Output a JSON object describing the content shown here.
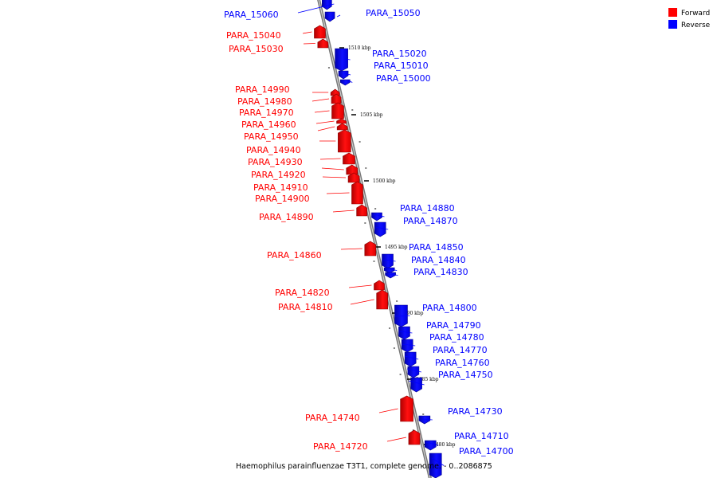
{
  "caption": "Haemophilus parainfluenzae T3T1, complete genome. - 0..2086875",
  "legend": [
    {
      "label": "Forward",
      "color": "#ff0000"
    },
    {
      "label": "Reverse",
      "color": "#0000ff"
    }
  ],
  "scale_labels": [
    "1510 kbp",
    "1505 kbp",
    "1500 kbp",
    "1495 kbp",
    "1490 kbp",
    "1485 kbp",
    "1480 kbp"
  ],
  "genes": [
    {
      "label": "PARA_15060",
      "strand": "reverse"
    },
    {
      "label": "PARA_15050",
      "strand": "reverse"
    },
    {
      "label": "PARA_15040",
      "strand": "forward"
    },
    {
      "label": "PARA_15030",
      "strand": "forward"
    },
    {
      "label": "PARA_15020",
      "strand": "reverse"
    },
    {
      "label": "PARA_15010",
      "strand": "reverse"
    },
    {
      "label": "PARA_15000",
      "strand": "reverse"
    },
    {
      "label": "PARA_14990",
      "strand": "forward"
    },
    {
      "label": "PARA_14980",
      "strand": "forward"
    },
    {
      "label": "PARA_14970",
      "strand": "forward"
    },
    {
      "label": "PARA_14960",
      "strand": "forward"
    },
    {
      "label": "PARA_14950",
      "strand": "forward"
    },
    {
      "label": "PARA_14940",
      "strand": "forward"
    },
    {
      "label": "PARA_14930",
      "strand": "forward"
    },
    {
      "label": "PARA_14920",
      "strand": "forward"
    },
    {
      "label": "PARA_14910",
      "strand": "forward"
    },
    {
      "label": "PARA_14900",
      "strand": "forward"
    },
    {
      "label": "PARA_14890",
      "strand": "forward"
    },
    {
      "label": "PARA_14880",
      "strand": "reverse"
    },
    {
      "label": "PARA_14870",
      "strand": "reverse"
    },
    {
      "label": "PARA_14860",
      "strand": "forward"
    },
    {
      "label": "PARA_14850",
      "strand": "reverse"
    },
    {
      "label": "PARA_14840",
      "strand": "reverse"
    },
    {
      "label": "PARA_14830",
      "strand": "reverse"
    },
    {
      "label": "PARA_14820",
      "strand": "forward"
    },
    {
      "label": "PARA_14810",
      "strand": "forward"
    },
    {
      "label": "PARA_14800",
      "strand": "reverse"
    },
    {
      "label": "PARA_14790",
      "strand": "reverse"
    },
    {
      "label": "PARA_14780",
      "strand": "reverse"
    },
    {
      "label": "PARA_14770",
      "strand": "reverse"
    },
    {
      "label": "PARA_14760",
      "strand": "reverse"
    },
    {
      "label": "PARA_14750",
      "strand": "reverse"
    },
    {
      "label": "PARA_14740",
      "strand": "forward"
    },
    {
      "label": "PARA_14730",
      "strand": "reverse"
    },
    {
      "label": "PARA_14720",
      "strand": "forward"
    },
    {
      "label": "PARA_14710",
      "strand": "reverse"
    },
    {
      "label": "PARA_14700",
      "strand": "reverse"
    }
  ]
}
